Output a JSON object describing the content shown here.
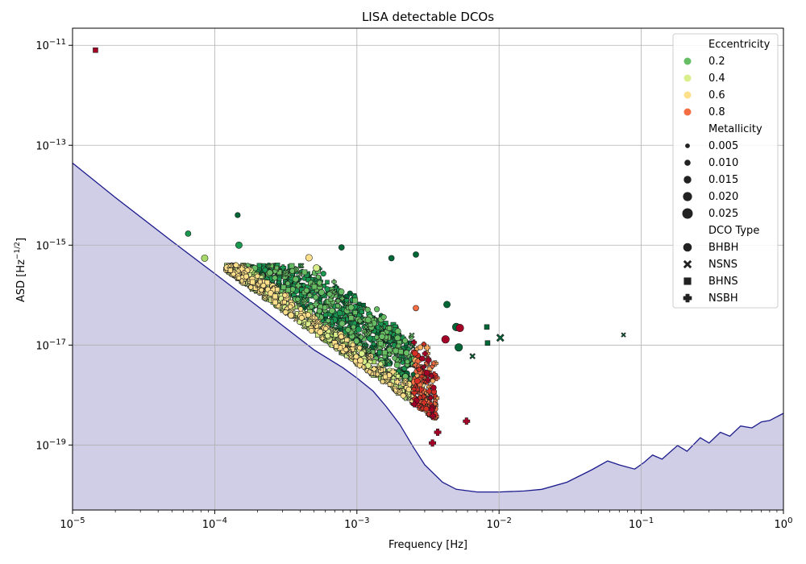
{
  "chart_data": {
    "type": "scatter",
    "title": "LISA detectable DCOs",
    "xlabel": "Frequency [Hz]",
    "ylabel": "ASD [Hz",
    "ylabel_exponent": "−1/2",
    "ylabel_close": "]",
    "x_scale": "log",
    "y_scale": "log",
    "xlim": [
      1e-05,
      1
    ],
    "ylim": [
      5e-21,
      2.2e-11
    ],
    "grid": true,
    "legend_position": "top-right",
    "x_ticks": [
      {
        "value": 1e-05,
        "base": "10",
        "exp": "−5"
      },
      {
        "value": 0.0001,
        "base": "10",
        "exp": "−4"
      },
      {
        "value": 0.001,
        "base": "10",
        "exp": "−3"
      },
      {
        "value": 0.01,
        "base": "10",
        "exp": "−2"
      },
      {
        "value": 0.1,
        "base": "10",
        "exp": "−1"
      },
      {
        "value": 1,
        "base": "10",
        "exp": "0"
      }
    ],
    "y_ticks": [
      {
        "value": 1e-19,
        "base": "10",
        "exp": "−19"
      },
      {
        "value": 1e-17,
        "base": "10",
        "exp": "−17"
      },
      {
        "value": 1e-15,
        "base": "10",
        "exp": "−15"
      },
      {
        "value": 1e-13,
        "base": "10",
        "exp": "−13"
      },
      {
        "value": 1e-11,
        "base": "10",
        "exp": "−11"
      }
    ],
    "sensitivity_curve": {
      "line_color": "#1a1a8c",
      "fill_color": "#d0cde6",
      "points": [
        [
          1e-05,
          4.4e-14
        ],
        [
          2e-05,
          9e-15
        ],
        [
          5e-05,
          1.2e-15
        ],
        [
          0.0001,
          2.7e-16
        ],
        [
          0.0002,
          6e-17
        ],
        [
          0.0005,
          8e-18
        ],
        [
          0.0008,
          3.5e-18
        ],
        [
          0.001,
          2.2e-18
        ],
        [
          0.0013,
          1.2e-18
        ],
        [
          0.0016,
          6e-19
        ],
        [
          0.002,
          2.6e-19
        ],
        [
          0.0025,
          9e-20
        ],
        [
          0.003,
          4e-20
        ],
        [
          0.004,
          1.8e-20
        ],
        [
          0.005,
          1.3e-20
        ],
        [
          0.007,
          1.15e-20
        ],
        [
          0.01,
          1.15e-20
        ],
        [
          0.015,
          1.2e-20
        ],
        [
          0.02,
          1.3e-20
        ],
        [
          0.03,
          1.8e-20
        ],
        [
          0.045,
          3.2e-20
        ],
        [
          0.058,
          4.8e-20
        ],
        [
          0.07,
          4e-20
        ],
        [
          0.09,
          3.3e-20
        ],
        [
          0.105,
          4.5e-20
        ],
        [
          0.12,
          6.3e-20
        ],
        [
          0.14,
          5.2e-20
        ],
        [
          0.18,
          9.8e-20
        ],
        [
          0.21,
          7.5e-20
        ],
        [
          0.26,
          1.4e-19
        ],
        [
          0.3,
          1.1e-19
        ],
        [
          0.36,
          1.8e-19
        ],
        [
          0.42,
          1.5e-19
        ],
        [
          0.5,
          2.4e-19
        ],
        [
          0.6,
          2.2e-19
        ],
        [
          0.7,
          2.9e-19
        ],
        [
          0.8,
          3.1e-19
        ],
        [
          1,
          4.3e-19
        ]
      ]
    },
    "legend": {
      "eccentricity_title": "Eccentricity",
      "eccentricity": [
        {
          "label": "0.2",
          "color": "#66bd63"
        },
        {
          "label": "0.4",
          "color": "#d9ef8b"
        },
        {
          "label": "0.6",
          "color": "#fee08b"
        },
        {
          "label": "0.8",
          "color": "#f46d43"
        }
      ],
      "metallicity_title": "Metallicity",
      "metallicity": [
        {
          "label": "0.005",
          "value": 0.005
        },
        {
          "label": "0.010",
          "value": 0.01
        },
        {
          "label": "0.015",
          "value": 0.015
        },
        {
          "label": "0.020",
          "value": 0.02
        },
        {
          "label": "0.025",
          "value": 0.025
        }
      ],
      "dco_title": "DCO Type",
      "dco_types": [
        {
          "label": "BHBH",
          "marker": "circle"
        },
        {
          "label": "NSNS",
          "marker": "x"
        },
        {
          "label": "BHNS",
          "marker": "square"
        },
        {
          "label": "NSBH",
          "marker": "plus"
        }
      ]
    },
    "colors": {
      "e0": "#006837",
      "e1": "#1a9850",
      "e2": "#66bd63",
      "e3": "#a6d96a",
      "e4": "#d9ef8b",
      "e5": "#fee08b",
      "e6": "#fdae61",
      "e7": "#f46d43",
      "e8": "#d73027",
      "e9": "#a50026"
    },
    "highlighted_points": [
      {
        "x": 1.45e-05,
        "y": 8e-12,
        "ecc": 0.95,
        "z": 0.01,
        "type": "BHNS"
      },
      {
        "x": 6.5e-05,
        "y": 1.7e-15,
        "ecc": 0.1,
        "z": 0.01,
        "type": "BHBH"
      },
      {
        "x": 0.000145,
        "y": 4e-15,
        "ecc": 0.0,
        "z": 0.008,
        "type": "BHBH"
      },
      {
        "x": 0.000148,
        "y": 1e-15,
        "ecc": 0.1,
        "z": 0.015,
        "type": "BHBH"
      },
      {
        "x": 0.00078,
        "y": 9e-16,
        "ecc": 0.0,
        "z": 0.01,
        "type": "BHBH"
      },
      {
        "x": 0.00046,
        "y": 5.6e-16,
        "ecc": 0.6,
        "z": 0.015,
        "type": "BHBH"
      },
      {
        "x": 0.00052,
        "y": 3.5e-16,
        "ecc": 0.4,
        "z": 0.015,
        "type": "BHBH"
      },
      {
        "x": 8.5e-05,
        "y": 5.5e-16,
        "ecc": 0.35,
        "z": 0.015,
        "type": "BHBH"
      },
      {
        "x": 0.00175,
        "y": 5.5e-16,
        "ecc": 0.0,
        "z": 0.01,
        "type": "BHBH"
      },
      {
        "x": 0.0026,
        "y": 6.5e-16,
        "ecc": 0.0,
        "z": 0.01,
        "type": "BHBH"
      },
      {
        "x": 0.0026,
        "y": 5.5e-17,
        "ecc": 0.8,
        "z": 0.01,
        "type": "BHBH"
      },
      {
        "x": 0.0043,
        "y": 6.5e-17,
        "ecc": 0.0,
        "z": 0.015,
        "type": "BHBH"
      },
      {
        "x": 0.005,
        "y": 2.3e-17,
        "ecc": 0.0,
        "z": 0.02,
        "type": "BHBH"
      },
      {
        "x": 0.0053,
        "y": 2.2e-17,
        "ecc": 0.95,
        "z": 0.02,
        "type": "BHBH"
      },
      {
        "x": 0.0042,
        "y": 1.3e-17,
        "ecc": 0.95,
        "z": 0.02,
        "type": "BHBH"
      },
      {
        "x": 0.0052,
        "y": 9e-18,
        "ecc": 0.0,
        "z": 0.02,
        "type": "BHBH"
      },
      {
        "x": 0.0082,
        "y": 2.3e-17,
        "ecc": 0.0,
        "z": 0.01,
        "type": "BHNS"
      },
      {
        "x": 0.0083,
        "y": 1.1e-17,
        "ecc": 0.0,
        "z": 0.01,
        "type": "BHNS"
      },
      {
        "x": 0.0102,
        "y": 1.4e-17,
        "ecc": 0.0,
        "z": 0.02,
        "type": "NSNS"
      },
      {
        "x": 0.075,
        "y": 1.6e-17,
        "ecc": 0.0,
        "z": 0.005,
        "type": "NSNS"
      },
      {
        "x": 0.0065,
        "y": 6e-18,
        "ecc": 0.0,
        "z": 0.01,
        "type": "NSNS"
      },
      {
        "x": 0.0059,
        "y": 3e-19,
        "ecc": 0.95,
        "z": 0.015,
        "type": "NSBH"
      },
      {
        "x": 0.0037,
        "y": 1.8e-19,
        "ecc": 0.95,
        "z": 0.015,
        "type": "NSBH"
      },
      {
        "x": 0.0034,
        "y": 1.1e-19,
        "ecc": 0.95,
        "z": 0.015,
        "type": "NSBH"
      }
    ]
  }
}
